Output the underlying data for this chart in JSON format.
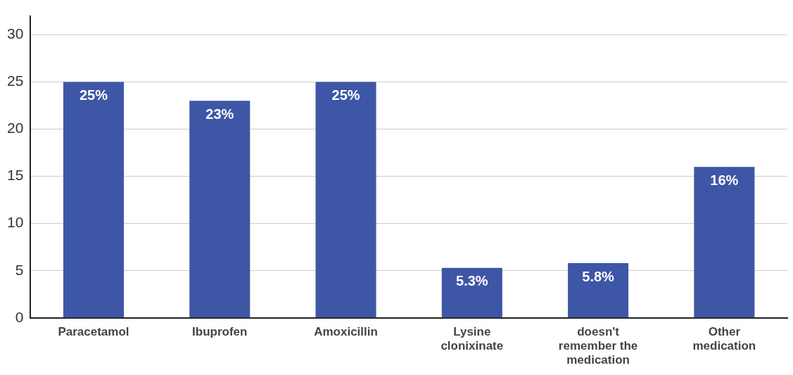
{
  "chart_data": {
    "type": "bar",
    "categories": [
      "Paracetamol",
      "Ibuprofen",
      "Amoxicillin",
      "Lysine clonixinate",
      "doesn't remember the medication",
      "Other medication"
    ],
    "values": [
      25,
      23,
      25,
      5.3,
      5.8,
      16
    ],
    "value_labels": [
      "25%",
      "23%",
      "25%",
      "5.3%",
      "5.8%",
      "16%"
    ],
    "color": "#3d56a6",
    "ylim": [
      0,
      32
    ],
    "yticks": [
      0,
      5,
      10,
      15,
      20,
      25,
      30
    ],
    "grid": "y"
  }
}
